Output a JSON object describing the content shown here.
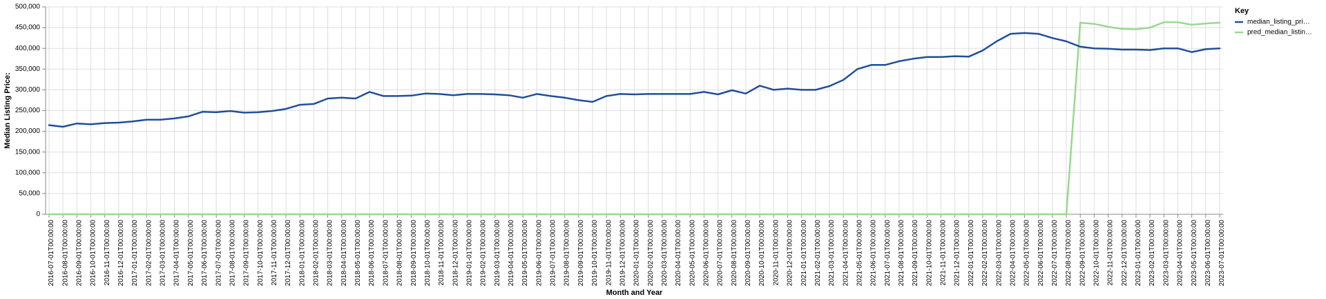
{
  "chart_data": {
    "type": "line",
    "xlabel": "Month and Year",
    "ylabel": "Median Listing Price:",
    "ylim": [
      0,
      500000
    ],
    "yticks": [
      {
        "value": 0,
        "label": "0"
      },
      {
        "value": 50000,
        "label": "50,000"
      },
      {
        "value": 100000,
        "label": "100,000"
      },
      {
        "value": 150000,
        "label": "150,000"
      },
      {
        "value": 200000,
        "label": "200,000"
      },
      {
        "value": 250000,
        "label": "250,000"
      },
      {
        "value": 300000,
        "label": "300,000"
      },
      {
        "value": 350000,
        "label": "350,000"
      },
      {
        "value": 400000,
        "label": "400,000"
      },
      {
        "value": 450000,
        "label": "450,000"
      },
      {
        "value": 500000,
        "label": "500,000"
      }
    ],
    "grid": true,
    "legend": {
      "title": "Key",
      "placement": "top-right"
    },
    "x": [
      "2016-07-01T00:00:00",
      "2016-08-01T00:00:00",
      "2016-09-01T00:00:00",
      "2016-10-01T00:00:00",
      "2016-11-01T00:00:00",
      "2016-12-01T00:00:00",
      "2017-01-01T00:00:00",
      "2017-02-01T00:00:00",
      "2017-03-01T00:00:00",
      "2017-04-01T00:00:00",
      "2017-05-01T00:00:00",
      "2017-06-01T00:00:00",
      "2017-07-01T00:00:00",
      "2017-08-01T00:00:00",
      "2017-09-01T00:00:00",
      "2017-10-01T00:00:00",
      "2017-11-01T00:00:00",
      "2017-12-01T00:00:00",
      "2018-01-01T00:00:00",
      "2018-02-01T00:00:00",
      "2018-03-01T00:00:00",
      "2018-04-01T00:00:00",
      "2018-05-01T00:00:00",
      "2018-06-01T00:00:00",
      "2018-07-01T00:00:00",
      "2018-08-01T00:00:00",
      "2018-09-01T00:00:00",
      "2018-10-01T00:00:00",
      "2018-11-01T00:00:00",
      "2018-12-01T00:00:00",
      "2019-01-01T00:00:00",
      "2019-02-01T00:00:00",
      "2019-03-01T00:00:00",
      "2019-04-01T00:00:00",
      "2019-05-01T00:00:00",
      "2019-06-01T00:00:00",
      "2019-07-01T00:00:00",
      "2019-08-01T00:00:00",
      "2019-09-01T00:00:00",
      "2019-10-01T00:00:00",
      "2019-11-01T00:00:00",
      "2019-12-01T00:00:00",
      "2020-01-01T00:00:00",
      "2020-02-01T00:00:00",
      "2020-03-01T00:00:00",
      "2020-04-01T00:00:00",
      "2020-05-01T00:00:00",
      "2020-06-01T00:00:00",
      "2020-07-01T00:00:00",
      "2020-08-01T00:00:00",
      "2020-09-01T00:00:00",
      "2020-10-01T00:00:00",
      "2020-11-01T00:00:00",
      "2020-12-01T00:00:00",
      "2021-01-01T00:00:00",
      "2021-02-01T00:00:00",
      "2021-03-01T00:00:00",
      "2021-04-01T00:00:00",
      "2021-05-01T00:00:00",
      "2021-06-01T00:00:00",
      "2021-07-01T00:00:00",
      "2021-08-01T00:00:00",
      "2021-09-01T00:00:00",
      "2021-10-01T00:00:00",
      "2021-11-01T00:00:00",
      "2021-12-01T00:00:00",
      "2022-01-01T00:00:00",
      "2022-02-01T00:00:00",
      "2022-03-01T00:00:00",
      "2022-04-01T00:00:00",
      "2022-05-01T00:00:00",
      "2022-06-01T00:00:00",
      "2022-07-01T00:00:00",
      "2022-08-01T00:00:00",
      "2022-09-01T00:00:00",
      "2022-10-01T00:00:00",
      "2022-11-01T00:00:00",
      "2022-12-01T00:00:00",
      "2023-01-01T00:00:00",
      "2023-02-01T00:00:00",
      "2023-03-01T00:00:00",
      "2023-04-01T00:00:00",
      "2023-05-01T00:00:00",
      "2023-06-01T00:00:00",
      "2023-07-01T00:00:00"
    ],
    "series": [
      {
        "name": "median_listing_pri…",
        "color": "#1f4e9c",
        "values": [
          215000,
          211000,
          219000,
          217000,
          220000,
          221000,
          224000,
          228000,
          228000,
          231000,
          236000,
          247000,
          246000,
          249000,
          245000,
          246000,
          249000,
          254000,
          264000,
          266000,
          279000,
          281000,
          279000,
          295000,
          285000,
          285000,
          286000,
          291000,
          290000,
          287000,
          290000,
          290000,
          289000,
          287000,
          281000,
          290000,
          285000,
          281000,
          275000,
          271000,
          285000,
          290000,
          289000,
          290000,
          290000,
          290000,
          290000,
          295000,
          289000,
          299000,
          291000,
          310000,
          300000,
          303000,
          300000,
          300000,
          309000,
          324000,
          350000,
          360000,
          360000,
          369000,
          375000,
          379000,
          379000,
          381000,
          380000,
          395000,
          417000,
          435000,
          437000,
          435000,
          425000,
          417000,
          404000,
          400000,
          399000,
          397000,
          397000,
          396000,
          400000,
          400000,
          391000,
          398000,
          400000
        ]
      },
      {
        "name": "pred_median_listin…",
        "color": "#98d98e",
        "values": [
          0,
          0,
          0,
          0,
          0,
          0,
          0,
          0,
          0,
          0,
          0,
          0,
          0,
          0,
          0,
          0,
          0,
          0,
          0,
          0,
          0,
          0,
          0,
          0,
          0,
          0,
          0,
          0,
          0,
          0,
          0,
          0,
          0,
          0,
          0,
          0,
          0,
          0,
          0,
          0,
          0,
          0,
          0,
          0,
          0,
          0,
          0,
          0,
          0,
          0,
          0,
          0,
          0,
          0,
          0,
          0,
          0,
          0,
          0,
          0,
          0,
          0,
          0,
          0,
          0,
          0,
          0,
          0,
          0,
          0,
          0,
          0,
          0,
          0,
          462000,
          459000,
          452000,
          447000,
          446000,
          450000,
          463000,
          463000,
          457000,
          460000,
          462000
        ]
      }
    ]
  }
}
